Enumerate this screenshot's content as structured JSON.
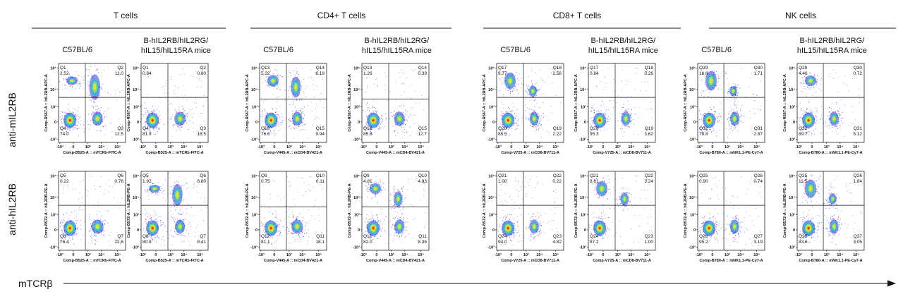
{
  "x_axis_label": "mTCRβ",
  "colors": {
    "low": "#2b2bd8",
    "mid": "#22c0e0",
    "high": "#f2e21a",
    "peak": "#e02a18"
  },
  "groups": [
    {
      "title": "T cells"
    },
    {
      "title": "CD4+ T cells"
    },
    {
      "title": "CD8+ T cells"
    },
    {
      "title": "NK cells"
    }
  ],
  "strains": {
    "wt": "C57BL/6",
    "hum_line1": "B-hIL2RB/hIL2RG/",
    "hum_line2": "hIL15/hIL15RA mice"
  },
  "rows": [
    "anti-mIL2RB",
    "anti-hIL2RB"
  ],
  "chart_data": {
    "type": "scatter",
    "subtype": "flow-cytometry quadrant density plots",
    "panels": [
      {
        "row": 0,
        "group": 0,
        "strain": "C57BL/6",
        "xlabel": "Comp-B525-A :: mTCRb-FITC-A",
        "ylabel": "Comp-R667-A :: hIL2RB-APC-A",
        "xticks": [
          "-10³",
          "0",
          "10³",
          "10⁴",
          "10⁵"
        ],
        "yticks": [
          "-10³",
          "0",
          "10³",
          "10⁴",
          "10⁵"
        ],
        "quadrants": [
          {
            "name": "Q1",
            "value": "2.52"
          },
          {
            "name": "Q2",
            "value": "11.0"
          },
          {
            "name": "Q3",
            "value": "12.5"
          },
          {
            "name": "Q4",
            "value": "74.0"
          }
        ]
      },
      {
        "row": 0,
        "group": 0,
        "strain": "B-hIL2RB/hIL2RG/hIL15/hIL15RA mice",
        "xlabel": "Comp-B525-A :: mTCRb-FITC-A",
        "ylabel": "Comp-R667-A :: hIL2RB-APC-A",
        "xticks": [
          "-10³",
          "0",
          "10³",
          "10⁴",
          "10⁵"
        ],
        "yticks": [
          "-10³",
          "0",
          "10³",
          "10⁴",
          "10⁵"
        ],
        "quadrants": [
          {
            "name": "Q1",
            "value": "0.84"
          },
          {
            "name": "Q2",
            "value": "0.80"
          },
          {
            "name": "Q3",
            "value": "16.5"
          },
          {
            "name": "Q4",
            "value": "81.9"
          }
        ]
      },
      {
        "row": 0,
        "group": 1,
        "strain": "C57BL/6",
        "xlabel": "Comp-V445-A :: mCD4-BV421-A",
        "ylabel": "Comp-R667-A :: hIL2RB-APC-A",
        "xticks": [
          "-10³",
          "0",
          "10³",
          "10⁴",
          "10⁵"
        ],
        "yticks": [
          "-10³",
          "0",
          "10³",
          "10⁴",
          "10⁵"
        ],
        "quadrants": [
          {
            "name": "Q13",
            "value": "5.32"
          },
          {
            "name": "Q14",
            "value": "8.19"
          },
          {
            "name": "Q15",
            "value": "9.94"
          },
          {
            "name": "Q16",
            "value": "76.6"
          }
        ]
      },
      {
        "row": 0,
        "group": 1,
        "strain": "B-hIL2RB/hIL2RG/hIL15/hIL15RA mice",
        "xlabel": "Comp-V445-A :: mCD4-BV421-A",
        "ylabel": "Comp-R667-A :: hIL2RB-APC-A",
        "xticks": [
          "-10³",
          "0",
          "10³",
          "10⁴",
          "10⁵"
        ],
        "yticks": [
          "-10³",
          "0",
          "10³",
          "10⁴",
          "10⁵"
        ],
        "quadrants": [
          {
            "name": "Q13",
            "value": "1.26"
          },
          {
            "name": "Q14",
            "value": "0.39"
          },
          {
            "name": "Q15",
            "value": "12.7"
          },
          {
            "name": "Q16",
            "value": "85.6"
          }
        ]
      },
      {
        "row": 0,
        "group": 2,
        "strain": "C57BL/6",
        "xlabel": "Comp-V725-A :: mCD8-BV711-A",
        "ylabel": "Comp-R667-A :: hIL2RB-APC-A",
        "xticks": [
          "-10³",
          "0",
          "10³",
          "10⁴",
          "10⁵"
        ],
        "yticks": [
          "-10³",
          "0",
          "10³",
          "10⁴",
          "10⁵"
        ],
        "quadrants": [
          {
            "name": "Q17",
            "value": "9.77"
          },
          {
            "name": "Q18",
            "value": "2.56"
          },
          {
            "name": "Q19",
            "value": "2.22"
          },
          {
            "name": "Q20",
            "value": "85.5"
          }
        ]
      },
      {
        "row": 0,
        "group": 2,
        "strain": "B-hIL2RB/hIL2RG/hIL15/hIL15RA mice",
        "xlabel": "Comp-V725-A :: mCD8-BV711-A",
        "ylabel": "Comp-R667-A :: hIL2RB-APC-A",
        "xticks": [
          "-10³",
          "0",
          "10³",
          "10⁴",
          "10⁵"
        ],
        "yticks": [
          "-10³",
          "0",
          "10³",
          "10⁴",
          "10⁵"
        ],
        "quadrants": [
          {
            "name": "Q17",
            "value": "0.84"
          },
          {
            "name": "Q18",
            "value": "0.26"
          },
          {
            "name": "Q19",
            "value": "3.62"
          },
          {
            "name": "Q20",
            "value": "95.3"
          }
        ]
      },
      {
        "row": 0,
        "group": 3,
        "strain": "C57BL/6",
        "xlabel": "Comp-B780-A :: mNK1.1-PE-Cy7-A",
        "ylabel": "Comp-R667-A :: hIL2RB-APC-A",
        "xticks": [
          "-10³",
          "0",
          "10³",
          "10⁴",
          "10⁵"
        ],
        "yticks": [
          "-10³",
          "0",
          "10³",
          "10⁴",
          "10⁵"
        ],
        "quadrants": [
          {
            "name": "Q29",
            "value": "16.6"
          },
          {
            "name": "Q30",
            "value": "1.71"
          },
          {
            "name": "Q31",
            "value": "2.87"
          },
          {
            "name": "Q32",
            "value": "78.8"
          }
        ]
      },
      {
        "row": 0,
        "group": 3,
        "strain": "B-hIL2RB/hIL2RG/hIL15/hIL15RA mice",
        "xlabel": "Comp-B780-A :: mNK1.1-PE-Cy7-A",
        "ylabel": "Comp-R667-A :: hIL2RB-APC-A",
        "xticks": [
          "-10³",
          "0",
          "10³",
          "10⁴",
          "10⁵"
        ],
        "yticks": [
          "-10³",
          "0",
          "10³",
          "10⁴",
          "10⁵"
        ],
        "quadrants": [
          {
            "name": "Q29",
            "value": "4.46"
          },
          {
            "name": "Q30",
            "value": "0.72"
          },
          {
            "name": "Q31",
            "value": "5.12"
          },
          {
            "name": "Q32",
            "value": "89.7"
          }
        ]
      },
      {
        "row": 1,
        "group": 0,
        "strain": "C57BL/6",
        "xlabel": "Comp-B525-A :: mTCRb-FITC-A",
        "ylabel": "Comp-B572-A :: hIL2RB-PE-A",
        "xticks": [
          "-10³",
          "0",
          "10³",
          "10⁴",
          "10⁵"
        ],
        "yticks": [
          "-10³",
          "0",
          "10³",
          "10⁴",
          "10⁵"
        ],
        "quadrants": [
          {
            "name": "Q5",
            "value": "0.22"
          },
          {
            "name": "Q6",
            "value": "0.78"
          },
          {
            "name": "Q7",
            "value": "22.6"
          },
          {
            "name": "Q8",
            "value": "76.4"
          }
        ]
      },
      {
        "row": 1,
        "group": 0,
        "strain": "B-hIL2RB/hIL2RG/hIL15/hIL15RA mice",
        "xlabel": "Comp-B525-A :: mTCRb-FITC-A",
        "ylabel": "Comp-B572-A :: hIL2RB-PE-A",
        "xticks": [
          "-10³",
          "0",
          "10³",
          "10⁴",
          "10⁵"
        ],
        "yticks": [
          "-10³",
          "0",
          "10³",
          "10⁴",
          "10⁵"
        ],
        "quadrants": [
          {
            "name": "Q5",
            "value": "1.92"
          },
          {
            "name": "Q6",
            "value": "8.80"
          },
          {
            "name": "Q7",
            "value": "8.41"
          },
          {
            "name": "Q8",
            "value": "80.9"
          }
        ]
      },
      {
        "row": 1,
        "group": 1,
        "strain": "C57BL/6",
        "xlabel": "Comp-V445-A :: mCD4-BV421-A",
        "ylabel": "Comp-B572-A :: hIL2RB-PE-A",
        "xticks": [
          "-10³",
          "0",
          "10³",
          "10⁴",
          "10⁵"
        ],
        "yticks": [
          "-10³",
          "0",
          "10³",
          "10⁴",
          "10⁵"
        ],
        "quadrants": [
          {
            "name": "Q9",
            "value": "0.75"
          },
          {
            "name": "Q10",
            "value": "0.11"
          },
          {
            "name": "Q11",
            "value": "18.1"
          },
          {
            "name": "Q12",
            "value": "81.1"
          }
        ]
      },
      {
        "row": 1,
        "group": 1,
        "strain": "B-hIL2RB/hIL2RG/hIL15/hIL15RA mice",
        "xlabel": "Comp-V445-A :: mCD4-BV421-A",
        "ylabel": "Comp-B572-A :: hIL2RB-PE-A",
        "xticks": [
          "-10³",
          "0",
          "10³",
          "10⁴",
          "10⁵"
        ],
        "yticks": [
          "-10³",
          "0",
          "10³",
          "10⁴",
          "10⁵"
        ],
        "quadrants": [
          {
            "name": "Q9",
            "value": "4.81"
          },
          {
            "name": "Q10",
            "value": "4.83"
          },
          {
            "name": "Q11",
            "value": "8.36"
          },
          {
            "name": "Q12",
            "value": "82.0"
          }
        ]
      },
      {
        "row": 1,
        "group": 2,
        "strain": "C57BL/6",
        "xlabel": "Comp-V725-A :: mCD8-BV711-A",
        "ylabel": "Comp-B572-A :: hIL2RB-PE-A",
        "xticks": [
          "-10³",
          "0",
          "10³",
          "10⁴",
          "10⁵"
        ],
        "yticks": [
          "-10³",
          "0",
          "10³",
          "10⁴",
          "10⁵"
        ],
        "quadrants": [
          {
            "name": "Q21",
            "value": "1.00"
          },
          {
            "name": "Q22",
            "value": "0.22"
          },
          {
            "name": "Q23",
            "value": "4.82"
          },
          {
            "name": "Q24",
            "value": "94.0"
          }
        ]
      },
      {
        "row": 1,
        "group": 2,
        "strain": "B-hIL2RB/hIL2RG/hIL15/hIL15RA mice",
        "xlabel": "Comp-V725-A :: mCD8-BV711-A",
        "ylabel": "Comp-B572-A :: hIL2RB-PE-A",
        "xticks": [
          "-10³",
          "0",
          "10³",
          "10⁴",
          "10⁵"
        ],
        "yticks": [
          "-10³",
          "0",
          "10³",
          "10⁴",
          "10⁵"
        ],
        "quadrants": [
          {
            "name": "Q21",
            "value": "8.61"
          },
          {
            "name": "Q22",
            "value": "3.24"
          },
          {
            "name": "Q23",
            "value": "1.00"
          },
          {
            "name": "Q24",
            "value": "87.2"
          }
        ]
      },
      {
        "row": 1,
        "group": 3,
        "strain": "C57BL/6",
        "xlabel": "Comp-B780-A :: mNK1.1-PE-Cy7-A",
        "ylabel": "Comp-B572-A :: hIL2RB-PE-A",
        "xticks": [
          "-10³",
          "0",
          "10³",
          "10⁴",
          "10⁵"
        ],
        "yticks": [
          "-10³",
          "0",
          "10³",
          "10⁴",
          "10⁵"
        ],
        "quadrants": [
          {
            "name": "Q25",
            "value": "0.90"
          },
          {
            "name": "Q26",
            "value": "0.74"
          },
          {
            "name": "Q27",
            "value": "3.19"
          },
          {
            "name": "Q28",
            "value": "95.2"
          }
        ]
      },
      {
        "row": 1,
        "group": 3,
        "strain": "B-hIL2RB/hIL2RG/hIL15/hIL15RA mice",
        "xlabel": "Comp-B780-A :: mNK1.1-PE-Cy7-A",
        "ylabel": "Comp-B572-A :: hIL2RB-PE-A",
        "xticks": [
          "-10³",
          "0",
          "10³",
          "10⁴",
          "10⁵"
        ],
        "yticks": [
          "-10³",
          "0",
          "10³",
          "10⁴",
          "10⁵"
        ],
        "quadrants": [
          {
            "name": "Q25",
            "value": "11.5"
          },
          {
            "name": "Q26",
            "value": "1.84"
          },
          {
            "name": "Q27",
            "value": "3.05"
          },
          {
            "name": "Q28",
            "value": "83.6"
          }
        ]
      }
    ]
  }
}
